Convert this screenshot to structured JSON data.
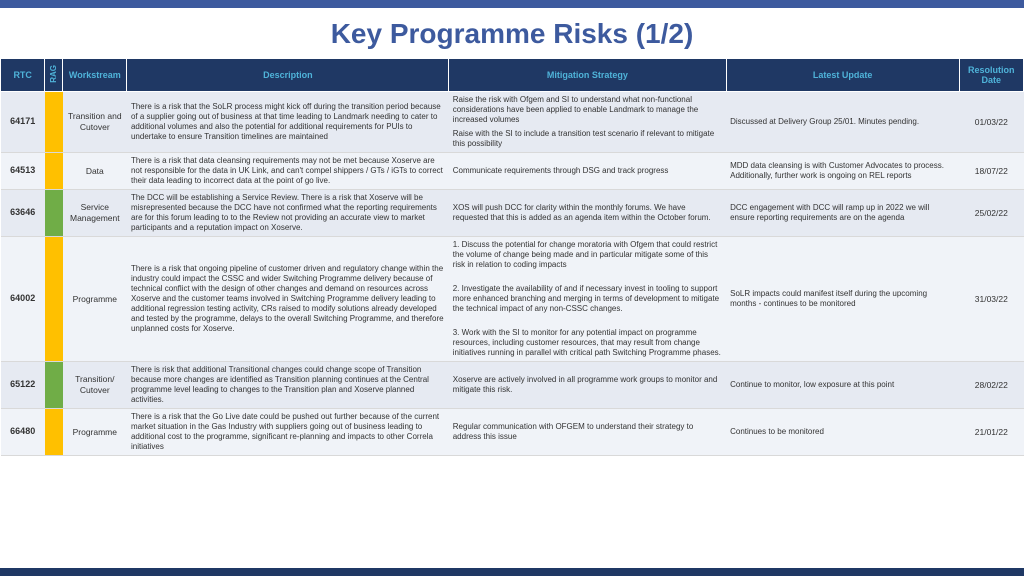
{
  "title": "Key Programme Risks (1/2)",
  "colors": {
    "topBar": "#3d5a9e",
    "headerBg": "#1f3864",
    "headerText": "#4fb3d9",
    "rowOdd": "#e6eaf2",
    "rowEven": "#f0f3f8",
    "amber": "#ffc000",
    "green": "#70ad47"
  },
  "headers": {
    "rtc": "RTC",
    "rag": "RAG",
    "workstream": "Workstream",
    "description": "Description",
    "mitigation": "Mitigation Strategy",
    "update": "Latest Update",
    "resolution": "Resolution Date"
  },
  "rows": [
    {
      "rtc": "64171",
      "rag": "amber",
      "workstream": "Transition and Cutover",
      "description": "There is a risk that the SoLR process might kick off during the transition period because of a supplier going out of business at that time leading to Landmark needing to cater to additional volumes and also the potential for additional requirements for PUIs to undertake to ensure Transition timelines are maintained",
      "mitigation": "Raise the risk with Ofgem and SI to understand what non-functional considerations have been applied to enable Landmark to manage the increased volumes\nRaise with the SI to include a transition test scenario if relevant to mitigate this possibility",
      "update": "Discussed at Delivery Group 25/01.  Minutes pending.",
      "resolution": "01/03/22"
    },
    {
      "rtc": "64513",
      "rag": "amber",
      "workstream": "Data",
      "description": "There is a risk that data cleansing requirements may not be met because Xoserve are not responsible for the data in UK Link, and can't compel shippers / GTs / iGTs to correct their data leading to incorrect data at the point of go live.",
      "mitigation": "Communicate requirements through DSG and track progress",
      "update": " MDD data cleansing is with Customer Advocates to process. Additionally, further work is ongoing on REL reports",
      "resolution": "18/07/22"
    },
    {
      "rtc": "63646",
      "rag": "green",
      "workstream": "Service Management",
      "description": "The DCC will be establishing a Service Review.  There is a risk that Xoserve will be misrepresented because the DCC have not confirmed what the reporting requirements are for this forum leading to to the Review not providing an accurate view to market participants and a reputation impact on Xoserve.",
      "mitigation": "XOS will push DCC for clarity within the monthly forums.  We have requested that this is added as an agenda item within the October forum.",
      "update": "DCC engagement with DCC will ramp up in 2022 we will ensure reporting requirements are on the agenda",
      "resolution": "25/02/22"
    },
    {
      "rtc": "64002",
      "rag": "amber",
      "workstream": "Programme",
      "description": "There is a risk that ongoing pipeline of customer driven and regulatory change within the industry could impact the CSSC and wider Switching Programme delivery because of technical conflict with the design of other changes and demand on resources across Xoserve and the customer teams involved in Switching Programme delivery leading to additional regression testing activity, CRs raised to modify solutions already developed and tested by the programme, delays to the overall Switching Programme, and therefore unplanned costs for Xoserve.",
      "mitigation": "1. Discuss the potential for change moratoria with Ofgem that could restrict the volume of change being made and in particular mitigate some of this risk in relation to coding impacts\n\n2. Investigate the availability of and if necessary invest in tooling to support more enhanced branching and merging in terms of development to mitigate the technical impact of any non-CSSC changes.\n\n3. Work with the SI to monitor for any potential impact on programme resources, including customer resources, that may result from change initiatives running in parallel with critical path Switching Programme phases.",
      "update": "SoLR impacts could manifest itself during the upcoming months - continues to be monitored",
      "resolution": "31/03/22"
    },
    {
      "rtc": "65122",
      "rag": "green",
      "workstream": "Transition/ Cutover",
      "description": "There is risk that additional Transitional changes could change scope of Transition because more changes are identified as Transition planning continues at the Central programme level leading to changes to the Transition plan and Xoserve planned activities.",
      "mitigation": "Xoserve are actively involved in all programme work groups to monitor and mitigate this risk.",
      "update": "Continue to monitor, low exposure at this point",
      "resolution": "28/02/22"
    },
    {
      "rtc": "66480",
      "rag": "amber",
      "workstream": "Programme",
      "description": "There is a risk that the Go Live date could be pushed out further because of the current market situation in the Gas Industry with suppliers going out of business leading to additional cost to the programme, significant re-planning and impacts to other Correla initiatives",
      "mitigation": "Regular communication with OFGEM to understand their strategy to address this issue",
      "update": "Continues to be monitored",
      "resolution": "21/01/22"
    }
  ]
}
